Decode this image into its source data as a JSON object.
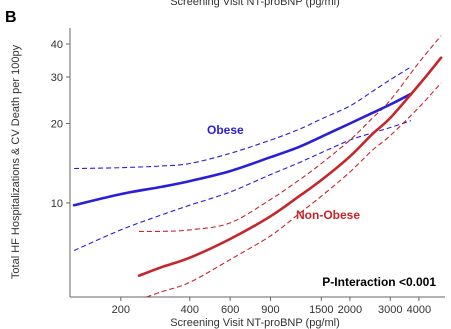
{
  "figure": {
    "panel_letter": "B",
    "top_cut_text": "Screening Visit NT-proBNP (pg/ml)"
  },
  "chart_data": {
    "type": "line",
    "xlabel": "Screening Visit NT-proBNP (pg/ml)",
    "ylabel": "Total HF Hospitalizations & CV Death per 100py",
    "x_scale": "log",
    "y_scale": "log",
    "xlim": [
      120,
      5200
    ],
    "ylim": [
      4.4,
      46
    ],
    "x_ticks": [
      200,
      400,
      600,
      900,
      1500,
      2000,
      3000,
      4000
    ],
    "x_tick_labels": [
      "200",
      "400",
      "600",
      "900",
      "1500",
      "2000",
      "3000",
      "4000"
    ],
    "y_ticks": [
      10,
      20,
      30,
      40
    ],
    "y_tick_labels": [
      "10",
      "20",
      "30",
      "40"
    ],
    "grid": false,
    "annotation": "P-Interaction <0.001",
    "series": [
      {
        "name": "Obese",
        "color": "#2a1fd8",
        "x": [
          125,
          200,
          300,
          400,
          600,
          900,
          1200,
          1500,
          2000,
          2500,
          3000,
          3700
        ],
        "y": [
          9.8,
          10.8,
          11.5,
          12.1,
          13.2,
          14.9,
          16.3,
          17.8,
          20.0,
          21.9,
          23.6,
          25.9
        ],
        "lower": [
          6.6,
          7.9,
          9.0,
          9.8,
          11.0,
          12.8,
          14.2,
          15.5,
          17.3,
          18.4,
          19.3,
          20.5
        ],
        "upper": [
          13.5,
          13.6,
          13.8,
          14.1,
          15.4,
          17.3,
          19.0,
          20.8,
          23.3,
          26.4,
          29.3,
          32.8
        ]
      },
      {
        "name": "Non-Obese",
        "color": "#c7242b",
        "x": [
          240,
          300,
          400,
          600,
          900,
          1200,
          1500,
          2000,
          2500,
          3000,
          4000,
          5000
        ],
        "y": [
          5.3,
          5.7,
          6.2,
          7.3,
          8.9,
          10.6,
          12.2,
          15.0,
          18.2,
          21.0,
          28.0,
          35.5
        ],
        "lower": [
          4.3,
          4.6,
          5.0,
          6.1,
          7.5,
          9.1,
          10.6,
          13.1,
          15.8,
          18.0,
          23.0,
          28.5
        ],
        "upper": [
          7.8,
          7.8,
          7.9,
          8.4,
          10.3,
          12.2,
          14.1,
          17.3,
          20.9,
          24.5,
          34.0,
          43.0
        ]
      }
    ]
  }
}
